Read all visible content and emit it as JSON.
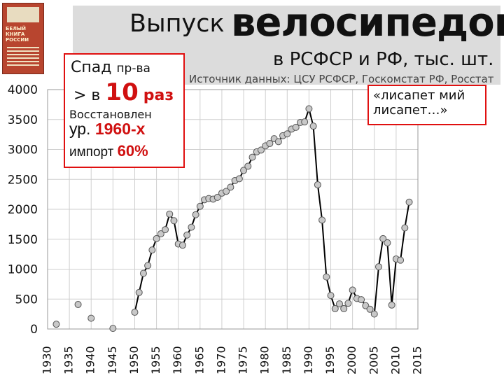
{
  "header": {
    "title_small": "Выпуск",
    "title_big": "велосипедов",
    "subtitle": "в РСФСР и РФ, тыс. шт.",
    "source": "Источник данных: ЦСУ РСФСР, Госкомстат РФ, Росстат"
  },
  "book": {
    "title": "БЕЛЫЙ КНИГА РОССИИ"
  },
  "note_left": {
    "line1_a": "Спад",
    "line1_b": "пр-ва",
    "line2_a": "> в",
    "line2_b": "10",
    "line2_c": "раз",
    "line3": "Восстановлен",
    "line4_a": "ур.",
    "line4_b": "1960-х",
    "line5_a": "импорт",
    "line5_b": "60%"
  },
  "note_right": {
    "text": "«лисапет мий лисапет…»"
  },
  "colors": {
    "annotation_border": "#e01010",
    "accent_red": "#d01010",
    "header_band": "#dcdcdc",
    "marker_fill": "#c8c8c8",
    "line": "#000000"
  },
  "chart_data": {
    "type": "line",
    "title": "Выпуск велосипедов в РСФСР и РФ, тыс. шт.",
    "xlabel": "",
    "ylabel": "",
    "xlim": [
      1930,
      2015
    ],
    "ylim": [
      0,
      4000
    ],
    "x_ticks": [
      1930,
      1935,
      1940,
      1945,
      1950,
      1955,
      1960,
      1965,
      1970,
      1975,
      1980,
      1985,
      1990,
      1995,
      2000,
      2005,
      2010,
      2015
    ],
    "y_ticks": [
      0,
      500,
      1000,
      1500,
      2000,
      2500,
      3000,
      3500,
      4000
    ],
    "grid": true,
    "isolated_points": [
      {
        "x": 1932,
        "y": 80
      },
      {
        "x": 1937,
        "y": 410
      },
      {
        "x": 1940,
        "y": 180
      },
      {
        "x": 1945,
        "y": 10
      }
    ],
    "series": [
      {
        "values": [
          {
            "x": 1950,
            "y": 280
          },
          {
            "x": 1951,
            "y": 610
          },
          {
            "x": 1952,
            "y": 930
          },
          {
            "x": 1953,
            "y": 1060
          },
          {
            "x": 1954,
            "y": 1320
          },
          {
            "x": 1955,
            "y": 1510
          },
          {
            "x": 1956,
            "y": 1590
          },
          {
            "x": 1957,
            "y": 1660
          },
          {
            "x": 1958,
            "y": 1920
          },
          {
            "x": 1959,
            "y": 1810
          },
          {
            "x": 1960,
            "y": 1420
          },
          {
            "x": 1961,
            "y": 1400
          },
          {
            "x": 1962,
            "y": 1570
          },
          {
            "x": 1963,
            "y": 1700
          },
          {
            "x": 1964,
            "y": 1910
          },
          {
            "x": 1965,
            "y": 2050
          },
          {
            "x": 1966,
            "y": 2160
          },
          {
            "x": 1967,
            "y": 2180
          },
          {
            "x": 1968,
            "y": 2170
          },
          {
            "x": 1969,
            "y": 2200
          },
          {
            "x": 1970,
            "y": 2270
          },
          {
            "x": 1971,
            "y": 2300
          },
          {
            "x": 1972,
            "y": 2370
          },
          {
            "x": 1973,
            "y": 2480
          },
          {
            "x": 1974,
            "y": 2510
          },
          {
            "x": 1975,
            "y": 2650
          },
          {
            "x": 1976,
            "y": 2720
          },
          {
            "x": 1977,
            "y": 2870
          },
          {
            "x": 1978,
            "y": 2960
          },
          {
            "x": 1979,
            "y": 2990
          },
          {
            "x": 1980,
            "y": 3060
          },
          {
            "x": 1981,
            "y": 3100
          },
          {
            "x": 1982,
            "y": 3180
          },
          {
            "x": 1983,
            "y": 3130
          },
          {
            "x": 1984,
            "y": 3230
          },
          {
            "x": 1985,
            "y": 3260
          },
          {
            "x": 1986,
            "y": 3340
          },
          {
            "x": 1987,
            "y": 3370
          },
          {
            "x": 1988,
            "y": 3450
          },
          {
            "x": 1989,
            "y": 3460
          },
          {
            "x": 1990,
            "y": 3680
          },
          {
            "x": 1991,
            "y": 3390
          },
          {
            "x": 1992,
            "y": 2410
          },
          {
            "x": 1993,
            "y": 1820
          },
          {
            "x": 1994,
            "y": 870
          },
          {
            "x": 1995,
            "y": 560
          },
          {
            "x": 1996,
            "y": 340
          },
          {
            "x": 1997,
            "y": 420
          },
          {
            "x": 1998,
            "y": 340
          },
          {
            "x": 1999,
            "y": 430
          },
          {
            "x": 2000,
            "y": 650
          },
          {
            "x": 2001,
            "y": 510
          },
          {
            "x": 2002,
            "y": 490
          },
          {
            "x": 2003,
            "y": 390
          },
          {
            "x": 2004,
            "y": 330
          },
          {
            "x": 2005,
            "y": 250
          },
          {
            "x": 2006,
            "y": 1040
          },
          {
            "x": 2007,
            "y": 1510
          },
          {
            "x": 2008,
            "y": 1440
          },
          {
            "x": 2009,
            "y": 400
          },
          {
            "x": 2010,
            "y": 1170
          },
          {
            "x": 2011,
            "y": 1150
          },
          {
            "x": 2012,
            "y": 1690
          },
          {
            "x": 2013,
            "y": 2120
          }
        ]
      }
    ]
  }
}
